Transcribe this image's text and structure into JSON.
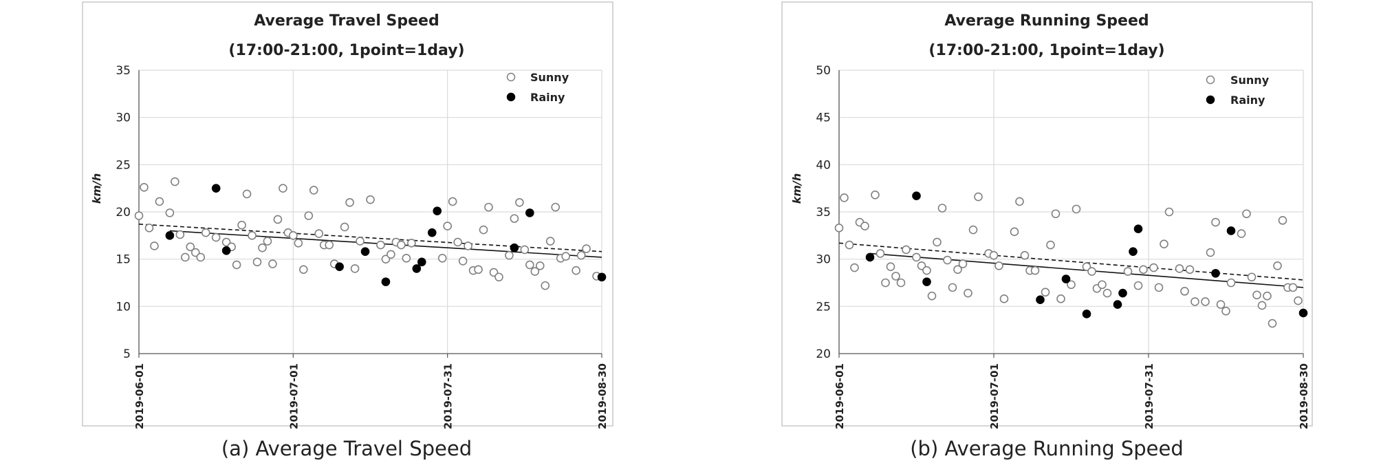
{
  "chart_data": [
    {
      "type": "scatter",
      "title": "Average Travel Speed",
      "subtitle": "(17:00-21:00,  1point=1day)",
      "caption": "(a) Average Travel Speed",
      "xlabel": "",
      "ylabel": "km/h",
      "ylim": [
        5,
        35
      ],
      "yticks": [
        "5",
        "10",
        "15",
        "20",
        "25",
        "30",
        "35"
      ],
      "xlim": [
        "2019-06-01",
        "2019-08-30"
      ],
      "xticks": [
        "2019-06-01",
        "2019-07-01",
        "2019-07-31",
        "2019-08-30"
      ],
      "grid": true,
      "legend_position": "top-right",
      "series": [
        {
          "name": "Sunny",
          "marker": "open-circle",
          "color": "#808080",
          "x": [
            "2019-06-01",
            "2019-06-02",
            "2019-06-03",
            "2019-06-04",
            "2019-06-05",
            "2019-06-07",
            "2019-06-08",
            "2019-06-09",
            "2019-06-10",
            "2019-06-11",
            "2019-06-12",
            "2019-06-13",
            "2019-06-14",
            "2019-06-16",
            "2019-06-18",
            "2019-06-19",
            "2019-06-20",
            "2019-06-21",
            "2019-06-22",
            "2019-06-23",
            "2019-06-24",
            "2019-06-25",
            "2019-06-26",
            "2019-06-27",
            "2019-06-28",
            "2019-06-29",
            "2019-06-30",
            "2019-07-01",
            "2019-07-02",
            "2019-07-03",
            "2019-07-04",
            "2019-07-05",
            "2019-07-06",
            "2019-07-07",
            "2019-07-08",
            "2019-07-09",
            "2019-07-11",
            "2019-07-12",
            "2019-07-13",
            "2019-07-14",
            "2019-07-16",
            "2019-07-18",
            "2019-07-19",
            "2019-07-20",
            "2019-07-21",
            "2019-07-22",
            "2019-07-23",
            "2019-07-24",
            "2019-07-30",
            "2019-07-31",
            "2019-08-01",
            "2019-08-02",
            "2019-08-03",
            "2019-08-04",
            "2019-08-05",
            "2019-08-06",
            "2019-08-07",
            "2019-08-08",
            "2019-08-09",
            "2019-08-10",
            "2019-08-12",
            "2019-08-13",
            "2019-08-14",
            "2019-08-15",
            "2019-08-16",
            "2019-08-17",
            "2019-08-18",
            "2019-08-19",
            "2019-08-20",
            "2019-08-21",
            "2019-08-22",
            "2019-08-23",
            "2019-08-25",
            "2019-08-26",
            "2019-08-27",
            "2019-08-29"
          ],
          "y": [
            19.6,
            22.6,
            18.3,
            16.4,
            21.1,
            19.9,
            23.2,
            17.6,
            15.2,
            16.3,
            15.7,
            15.2,
            17.8,
            17.3,
            16.8,
            16.3,
            14.4,
            18.6,
            21.9,
            17.5,
            14.7,
            16.2,
            16.9,
            14.5,
            19.2,
            22.5,
            17.8,
            17.5,
            16.7,
            13.9,
            19.6,
            22.3,
            17.7,
            16.5,
            16.5,
            14.5,
            18.4,
            21.0,
            14.0,
            16.9,
            21.3,
            16.5,
            15.0,
            15.5,
            16.8,
            16.5,
            15.1,
            16.7,
            15.1,
            18.5,
            21.1,
            16.8,
            14.8,
            16.4,
            13.8,
            13.9,
            18.1,
            20.5,
            13.6,
            13.1,
            15.4,
            19.3,
            21.0,
            16.0,
            14.4,
            13.7,
            14.3,
            12.2,
            16.9,
            20.5,
            15.1,
            15.3,
            13.8,
            15.4,
            16.1,
            13.2
          ]
        },
        {
          "name": "Rainy",
          "marker": "filled-circle",
          "color": "#000000",
          "x": [
            "2019-06-07",
            "2019-06-16",
            "2019-06-18",
            "2019-07-10",
            "2019-07-15",
            "2019-07-19",
            "2019-07-25",
            "2019-07-26",
            "2019-07-28",
            "2019-07-29",
            "2019-08-13",
            "2019-08-16",
            "2019-08-30"
          ],
          "y": [
            17.5,
            22.5,
            15.9,
            14.2,
            15.8,
            12.6,
            14.0,
            14.7,
            17.8,
            20.1,
            16.2,
            19.9,
            13.1
          ]
        }
      ],
      "trendlines": [
        {
          "series": "Sunny",
          "style": "dashed",
          "x": [
            "2019-06-01",
            "2019-08-30"
          ],
          "y": [
            18.7,
            15.8
          ]
        },
        {
          "series": "Rainy",
          "style": "solid",
          "x": [
            "2019-06-07",
            "2019-08-30"
          ],
          "y": [
            18.0,
            15.2
          ]
        }
      ]
    },
    {
      "type": "scatter",
      "title": "Average Running Speed",
      "subtitle": "(17:00-21:00,  1point=1day)",
      "caption": "(b) Average Running Speed",
      "xlabel": "",
      "ylabel": "km/h",
      "ylim": [
        20,
        50
      ],
      "yticks": [
        "20",
        "25",
        "30",
        "35",
        "40",
        "45",
        "50"
      ],
      "xlim": [
        "2019-06-01",
        "2019-08-30"
      ],
      "xticks": [
        "2019-06-01",
        "2019-07-01",
        "2019-07-31",
        "2019-08-30"
      ],
      "grid": true,
      "legend_position": "top-right",
      "series": [
        {
          "name": "Sunny",
          "marker": "open-circle",
          "color": "#808080",
          "x": [
            "2019-06-01",
            "2019-06-02",
            "2019-06-03",
            "2019-06-04",
            "2019-06-05",
            "2019-06-06",
            "2019-06-08",
            "2019-06-09",
            "2019-06-10",
            "2019-06-11",
            "2019-06-12",
            "2019-06-13",
            "2019-06-14",
            "2019-06-16",
            "2019-06-17",
            "2019-06-18",
            "2019-06-19",
            "2019-06-20",
            "2019-06-21",
            "2019-06-22",
            "2019-06-23",
            "2019-06-24",
            "2019-06-25",
            "2019-06-26",
            "2019-06-27",
            "2019-06-28",
            "2019-06-30",
            "2019-07-01",
            "2019-07-02",
            "2019-07-03",
            "2019-07-05",
            "2019-07-06",
            "2019-07-07",
            "2019-07-08",
            "2019-07-09",
            "2019-07-11",
            "2019-07-12",
            "2019-07-13",
            "2019-07-14",
            "2019-07-16",
            "2019-07-17",
            "2019-07-19",
            "2019-07-20",
            "2019-07-21",
            "2019-07-22",
            "2019-07-23",
            "2019-07-27",
            "2019-07-29",
            "2019-07-30",
            "2019-08-01",
            "2019-08-02",
            "2019-08-03",
            "2019-08-04",
            "2019-08-06",
            "2019-08-07",
            "2019-08-08",
            "2019-08-09",
            "2019-08-11",
            "2019-08-12",
            "2019-08-13",
            "2019-08-14",
            "2019-08-15",
            "2019-08-16",
            "2019-08-18",
            "2019-08-19",
            "2019-08-20",
            "2019-08-21",
            "2019-08-22",
            "2019-08-23",
            "2019-08-24",
            "2019-08-25",
            "2019-08-26",
            "2019-08-27",
            "2019-08-28",
            "2019-08-29"
          ],
          "y": [
            33.3,
            36.5,
            31.5,
            29.1,
            33.9,
            33.5,
            36.8,
            30.6,
            27.5,
            29.2,
            28.2,
            27.5,
            31.0,
            30.2,
            29.3,
            28.8,
            26.1,
            31.8,
            35.4,
            29.9,
            27.0,
            28.9,
            29.5,
            26.4,
            33.1,
            36.6,
            30.6,
            30.4,
            29.3,
            25.8,
            32.9,
            36.1,
            30.4,
            28.8,
            28.8,
            26.5,
            31.5,
            34.8,
            25.8,
            27.3,
            35.3,
            29.2,
            28.7,
            26.9,
            27.3,
            26.4,
            28.7,
            27.2,
            28.9,
            29.1,
            27.0,
            31.6,
            35.0,
            29.0,
            26.6,
            28.9,
            25.5,
            25.5,
            30.7,
            33.9,
            25.2,
            24.5,
            27.5,
            32.7,
            34.8,
            28.1,
            26.2,
            25.1,
            26.1,
            23.2,
            29.3,
            34.1,
            27.0,
            27.0,
            25.6
          ]
        },
        {
          "name": "Rainy",
          "marker": "filled-circle",
          "color": "#000000",
          "x": [
            "2019-06-07",
            "2019-06-16",
            "2019-06-18",
            "2019-07-10",
            "2019-07-15",
            "2019-07-19",
            "2019-07-25",
            "2019-07-26",
            "2019-07-28",
            "2019-07-29",
            "2019-08-13",
            "2019-08-16",
            "2019-08-30"
          ],
          "y": [
            30.2,
            36.7,
            27.6,
            25.7,
            27.9,
            24.2,
            25.2,
            26.4,
            30.8,
            33.2,
            28.5,
            33.0,
            24.3
          ]
        }
      ],
      "trendlines": [
        {
          "series": "Sunny",
          "style": "dashed",
          "x": [
            "2019-06-01",
            "2019-08-30"
          ],
          "y": [
            31.7,
            27.8
          ]
        },
        {
          "series": "Rainy",
          "style": "solid",
          "x": [
            "2019-06-07",
            "2019-08-30"
          ],
          "y": [
            30.6,
            27.0
          ]
        }
      ]
    }
  ]
}
